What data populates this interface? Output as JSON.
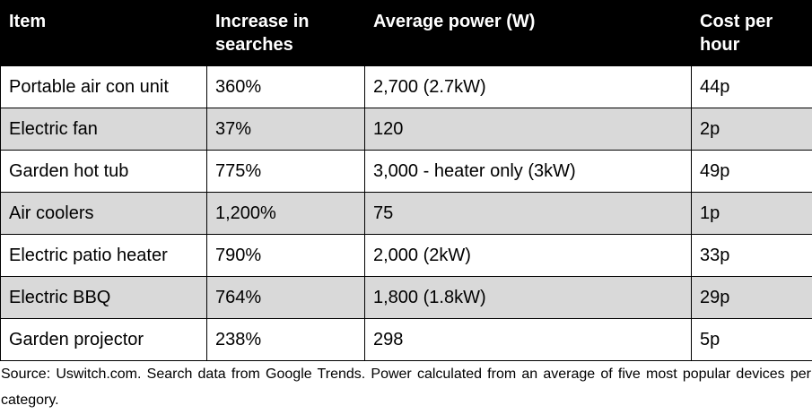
{
  "table": {
    "headers": [
      "Item",
      "Increase in searches",
      "Average power (W)",
      "Cost per hour"
    ],
    "rows": [
      [
        "Portable air con unit",
        "360%",
        "2,700 (2.7kW)",
        "44p"
      ],
      [
        "Electric fan",
        "37%",
        "120",
        "2p"
      ],
      [
        "Garden hot tub",
        "775%",
        "3,000 - heater only (3kW)",
        "49p"
      ],
      [
        "Air coolers",
        "1,200%",
        "75",
        "1p"
      ],
      [
        "Electric patio heater",
        "790%",
        "2,000 (2kW)",
        "33p"
      ],
      [
        "Electric BBQ",
        "764%",
        "1,800 (1.8kW)",
        "29p"
      ],
      [
        "Garden projector",
        "238%",
        "298",
        "5p"
      ]
    ],
    "shaded_row_color": "#d9d9d9",
    "header_background": "#000000"
  },
  "footnote": "Source: Uswitch.com. Search data from Google Trends. Power calculated from an average of five most popular devices per category."
}
